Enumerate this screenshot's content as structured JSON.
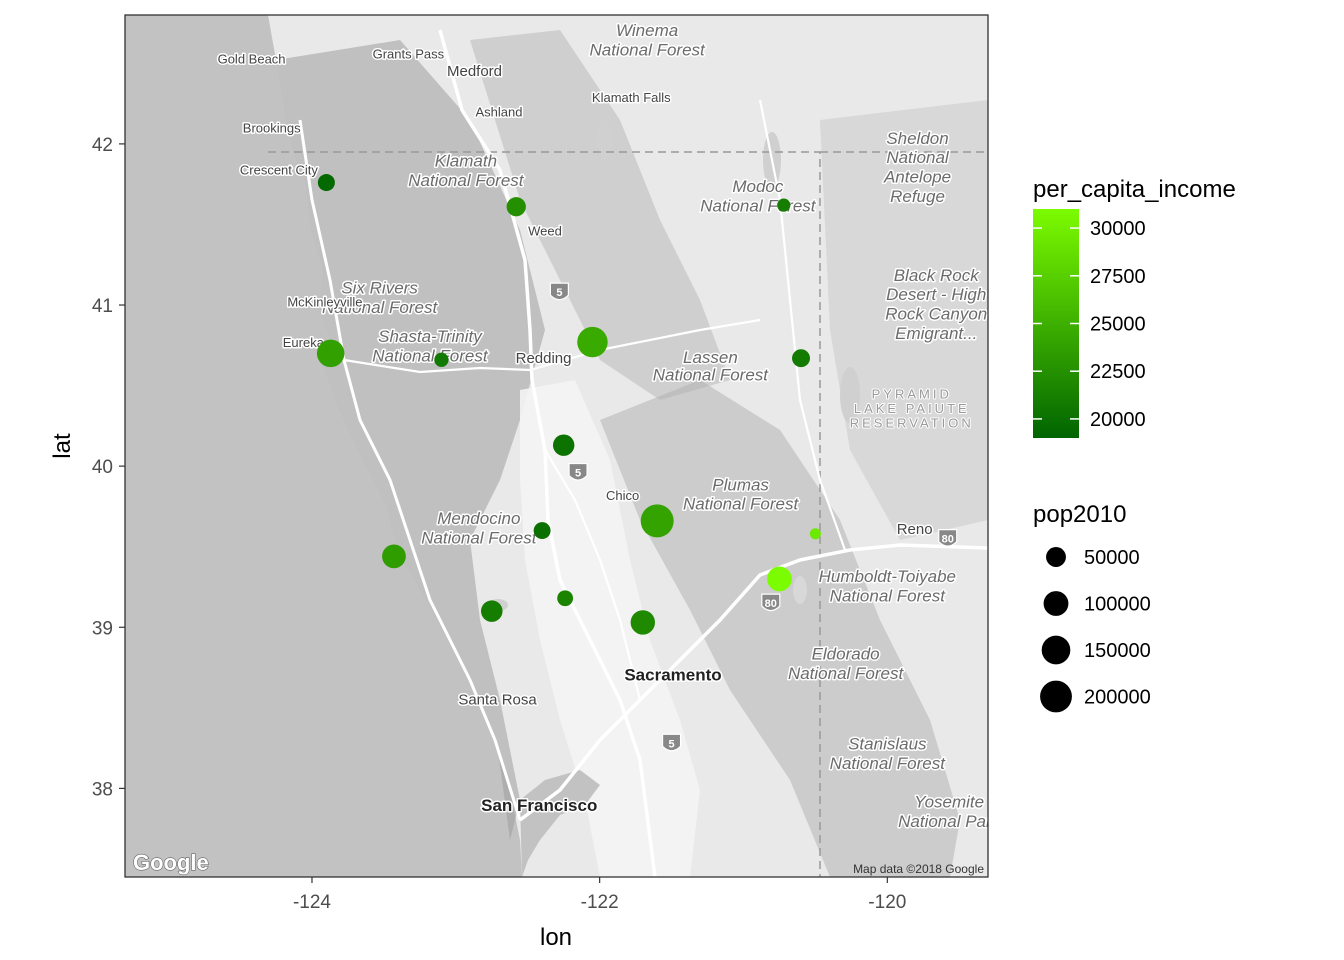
{
  "chart_data": {
    "type": "scatter",
    "title": "",
    "xlabel": "lon",
    "ylabel": "lat",
    "xlim": [
      -125.3,
      -119.3
    ],
    "ylim": [
      37.45,
      42.8
    ],
    "xticks": [
      -124,
      -122,
      -120
    ],
    "yticks": [
      38,
      39,
      40,
      41,
      42
    ],
    "xtick_labels": [
      "-124",
      "-122",
      "-120"
    ],
    "ytick_labels": [
      "38",
      "39",
      "40",
      "41",
      "42"
    ],
    "grid": false,
    "legend_position": "right",
    "color_legend": {
      "title": "per_capita_income",
      "range": [
        19000,
        31000
      ],
      "low_color": "#006400",
      "high_color": "#7CFC00",
      "breaks": [
        20000,
        22500,
        25000,
        27500,
        30000
      ],
      "break_labels": [
        "20000",
        "22500",
        "25000",
        "27500",
        "30000"
      ]
    },
    "size_legend": {
      "title": "pop2010",
      "breaks": [
        50000,
        100000,
        150000,
        200000
      ],
      "break_labels": [
        "50000",
        "100000",
        "150000",
        "200000"
      ]
    },
    "points": [
      {
        "lon": -123.9,
        "lat": 41.76,
        "income": 19400,
        "pop": 28600
      },
      {
        "lon": -122.58,
        "lat": 41.61,
        "income": 22500,
        "pop": 44900
      },
      {
        "lon": -120.72,
        "lat": 41.62,
        "income": 21000,
        "pop": 9700
      },
      {
        "lon": -123.87,
        "lat": 40.7,
        "income": 23800,
        "pop": 134600
      },
      {
        "lon": -123.1,
        "lat": 40.66,
        "income": 20700,
        "pop": 13800
      },
      {
        "lon": -122.05,
        "lat": 40.77,
        "income": 24500,
        "pop": 177200
      },
      {
        "lon": -120.6,
        "lat": 40.67,
        "income": 20800,
        "pop": 34900
      },
      {
        "lon": -122.25,
        "lat": 40.13,
        "income": 20200,
        "pop": 63500
      },
      {
        "lon": -121.6,
        "lat": 39.66,
        "income": 24000,
        "pop": 220000
      },
      {
        "lon": -122.4,
        "lat": 39.6,
        "income": 20000,
        "pop": 28100
      },
      {
        "lon": -120.5,
        "lat": 39.58,
        "income": 29500,
        "pop": 3200
      },
      {
        "lon": -123.43,
        "lat": 39.44,
        "income": 23500,
        "pop": 87800
      },
      {
        "lon": -120.75,
        "lat": 39.3,
        "income": 31000,
        "pop": 98800
      },
      {
        "lon": -122.24,
        "lat": 39.18,
        "income": 21500,
        "pop": 21400
      },
      {
        "lon": -122.75,
        "lat": 39.1,
        "income": 21000,
        "pop": 64700
      },
      {
        "lon": -121.7,
        "lat": 39.03,
        "income": 22000,
        "pop": 94700
      }
    ]
  },
  "basemap": {
    "attribution": "Map data ©2018 Google",
    "logo": "Google",
    "land_color": "#e9e9e9",
    "water_color": "#c2c2c2",
    "labels": [
      {
        "text": "Winema",
        "lon": -121.67,
        "lat": 42.67,
        "kind": "park"
      },
      {
        "text": "National Forest",
        "lon": -121.67,
        "lat": 42.55,
        "kind": "park"
      },
      {
        "text": "Gold Beach",
        "lon": -124.42,
        "lat": 42.5,
        "kind": "city"
      },
      {
        "text": "Grants Pass",
        "lon": -123.33,
        "lat": 42.53,
        "kind": "city"
      },
      {
        "text": "Medford",
        "lon": -122.87,
        "lat": 42.42,
        "kind": "city15"
      },
      {
        "text": "Klamath Falls",
        "lon": -121.78,
        "lat": 42.26,
        "kind": "city"
      },
      {
        "text": "Brookings",
        "lon": -124.28,
        "lat": 42.07,
        "kind": "city"
      },
      {
        "text": "Ashland",
        "lon": -122.7,
        "lat": 42.17,
        "kind": "city"
      },
      {
        "text": "Klamath",
        "lon": -122.93,
        "lat": 41.86,
        "kind": "park"
      },
      {
        "text": "National Forest",
        "lon": -122.93,
        "lat": 41.74,
        "kind": "park"
      },
      {
        "text": "Crescent City",
        "lon": -124.23,
        "lat": 41.81,
        "kind": "city"
      },
      {
        "text": "Sheldon",
        "lon": -119.79,
        "lat": 42.0,
        "kind": "park"
      },
      {
        "text": "National",
        "lon": -119.79,
        "lat": 41.88,
        "kind": "park"
      },
      {
        "text": "Antelope",
        "lon": -119.79,
        "lat": 41.76,
        "kind": "park"
      },
      {
        "text": "Refuge",
        "lon": -119.79,
        "lat": 41.64,
        "kind": "park"
      },
      {
        "text": "Modoc",
        "lon": -120.9,
        "lat": 41.7,
        "kind": "park"
      },
      {
        "text": "National Forest",
        "lon": -120.9,
        "lat": 41.58,
        "kind": "park"
      },
      {
        "text": "Weed",
        "lon": -122.38,
        "lat": 41.43,
        "kind": "city"
      },
      {
        "text": "Six Rivers",
        "lon": -123.53,
        "lat": 41.07,
        "kind": "park"
      },
      {
        "text": "National Forest",
        "lon": -123.53,
        "lat": 40.95,
        "kind": "park"
      },
      {
        "text": "Black Rock",
        "lon": -119.66,
        "lat": 41.15,
        "kind": "park"
      },
      {
        "text": "Desert - High",
        "lon": -119.66,
        "lat": 41.03,
        "kind": "park"
      },
      {
        "text": "Rock Canyon",
        "lon": -119.66,
        "lat": 40.91,
        "kind": "park"
      },
      {
        "text": "Emigrant...",
        "lon": -119.66,
        "lat": 40.79,
        "kind": "park"
      },
      {
        "text": "McKinleyville",
        "lon": -123.91,
        "lat": 40.99,
        "kind": "city"
      },
      {
        "text": "Eureka",
        "lon": -124.06,
        "lat": 40.74,
        "kind": "city"
      },
      {
        "text": "Shasta-Trinity",
        "lon": -123.18,
        "lat": 40.77,
        "kind": "park"
      },
      {
        "text": "National Forest",
        "lon": -123.18,
        "lat": 40.65,
        "kind": "park"
      },
      {
        "text": "Redding",
        "lon": -122.39,
        "lat": 40.64,
        "kind": "city15"
      },
      {
        "text": "Lassen",
        "lon": -121.23,
        "lat": 40.64,
        "kind": "park"
      },
      {
        "text": "National Forest",
        "lon": -121.23,
        "lat": 40.53,
        "kind": "park"
      },
      {
        "text": "PYRAMID",
        "lon": -119.83,
        "lat": 40.42,
        "kind": "res"
      },
      {
        "text": "LAKE PAIUTE",
        "lon": -119.83,
        "lat": 40.33,
        "kind": "res"
      },
      {
        "text": "RESERVATION",
        "lon": -119.83,
        "lat": 40.24,
        "kind": "res"
      },
      {
        "text": "Chico",
        "lon": -121.84,
        "lat": 39.79,
        "kind": "city"
      },
      {
        "text": "Plumas",
        "lon": -121.02,
        "lat": 39.85,
        "kind": "park"
      },
      {
        "text": "National Forest",
        "lon": -121.02,
        "lat": 39.73,
        "kind": "park"
      },
      {
        "text": "Mendocino",
        "lon": -122.84,
        "lat": 39.64,
        "kind": "park"
      },
      {
        "text": "National Forest",
        "lon": -122.84,
        "lat": 39.52,
        "kind": "park"
      },
      {
        "text": "Reno",
        "lon": -119.81,
        "lat": 39.58,
        "kind": "city15"
      },
      {
        "text": "Humboldt-Toiyabe",
        "lon": -120.0,
        "lat": 39.28,
        "kind": "park"
      },
      {
        "text": "National Forest",
        "lon": -120.0,
        "lat": 39.16,
        "kind": "park"
      },
      {
        "text": "Eldorado",
        "lon": -120.29,
        "lat": 38.8,
        "kind": "park"
      },
      {
        "text": "National Forest",
        "lon": -120.29,
        "lat": 38.68,
        "kind": "park"
      },
      {
        "text": "Sacramento",
        "lon": -121.49,
        "lat": 38.67,
        "kind": "major"
      },
      {
        "text": "Santa Rosa",
        "lon": -122.71,
        "lat": 38.52,
        "kind": "city15"
      },
      {
        "text": "Stanislaus",
        "lon": -120.0,
        "lat": 38.24,
        "kind": "park"
      },
      {
        "text": "National Forest",
        "lon": -120.0,
        "lat": 38.12,
        "kind": "park"
      },
      {
        "text": "Yosemite",
        "lon": -119.57,
        "lat": 37.88,
        "kind": "park"
      },
      {
        "text": "National Park",
        "lon": -119.57,
        "lat": 37.76,
        "kind": "park"
      },
      {
        "text": "San Francisco",
        "lon": -122.42,
        "lat": 37.86,
        "kind": "major"
      }
    ],
    "highway_shields": [
      {
        "text": "5",
        "lon": -122.28,
        "lat": 41.08
      },
      {
        "text": "5",
        "lon": -122.15,
        "lat": 39.96
      },
      {
        "text": "5",
        "lon": -121.5,
        "lat": 38.28
      },
      {
        "text": "80",
        "lon": -120.81,
        "lat": 39.15
      },
      {
        "text": "80",
        "lon": -119.58,
        "lat": 39.55
      }
    ]
  }
}
